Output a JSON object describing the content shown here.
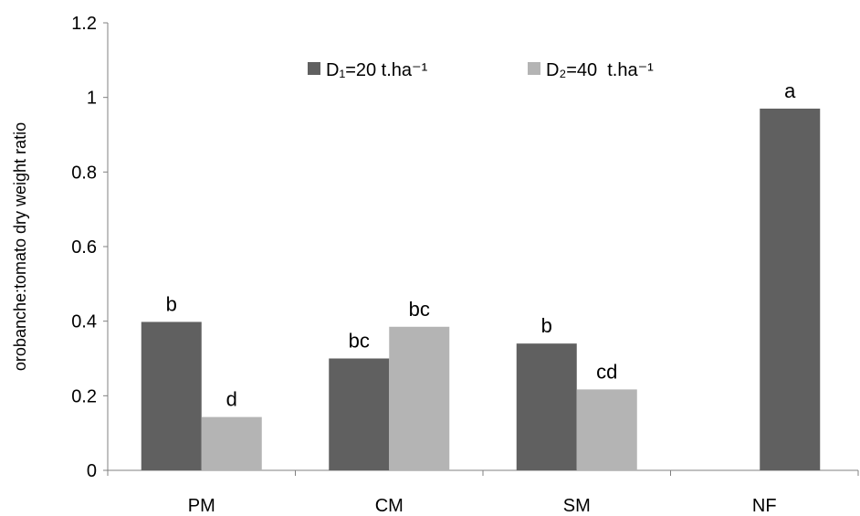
{
  "chart_data": {
    "type": "bar",
    "categories": [
      "PM",
      "CM",
      "SM",
      "NF"
    ],
    "series": [
      {
        "name": "D₁=20 t.ha⁻¹",
        "color": "#606060",
        "values": [
          0.398,
          0.3,
          0.34,
          0.97
        ],
        "labels": [
          "b",
          "bc",
          "b",
          "a"
        ]
      },
      {
        "name": "D₂=40  t.ha⁻¹",
        "color": "#b4b4b4",
        "values": [
          0.143,
          0.385,
          0.217,
          null
        ],
        "labels": [
          "d",
          "bc",
          "cd",
          ""
        ]
      }
    ],
    "ylabel": "orobanche:tomato dry weight ratio",
    "xlabel": "",
    "ylim": [
      0,
      1.2
    ],
    "yticks": [
      "0",
      "0.2",
      "0.4",
      "0.6",
      "0.8",
      "1",
      "1.2"
    ],
    "grid": false,
    "legend_position": "top-center"
  }
}
